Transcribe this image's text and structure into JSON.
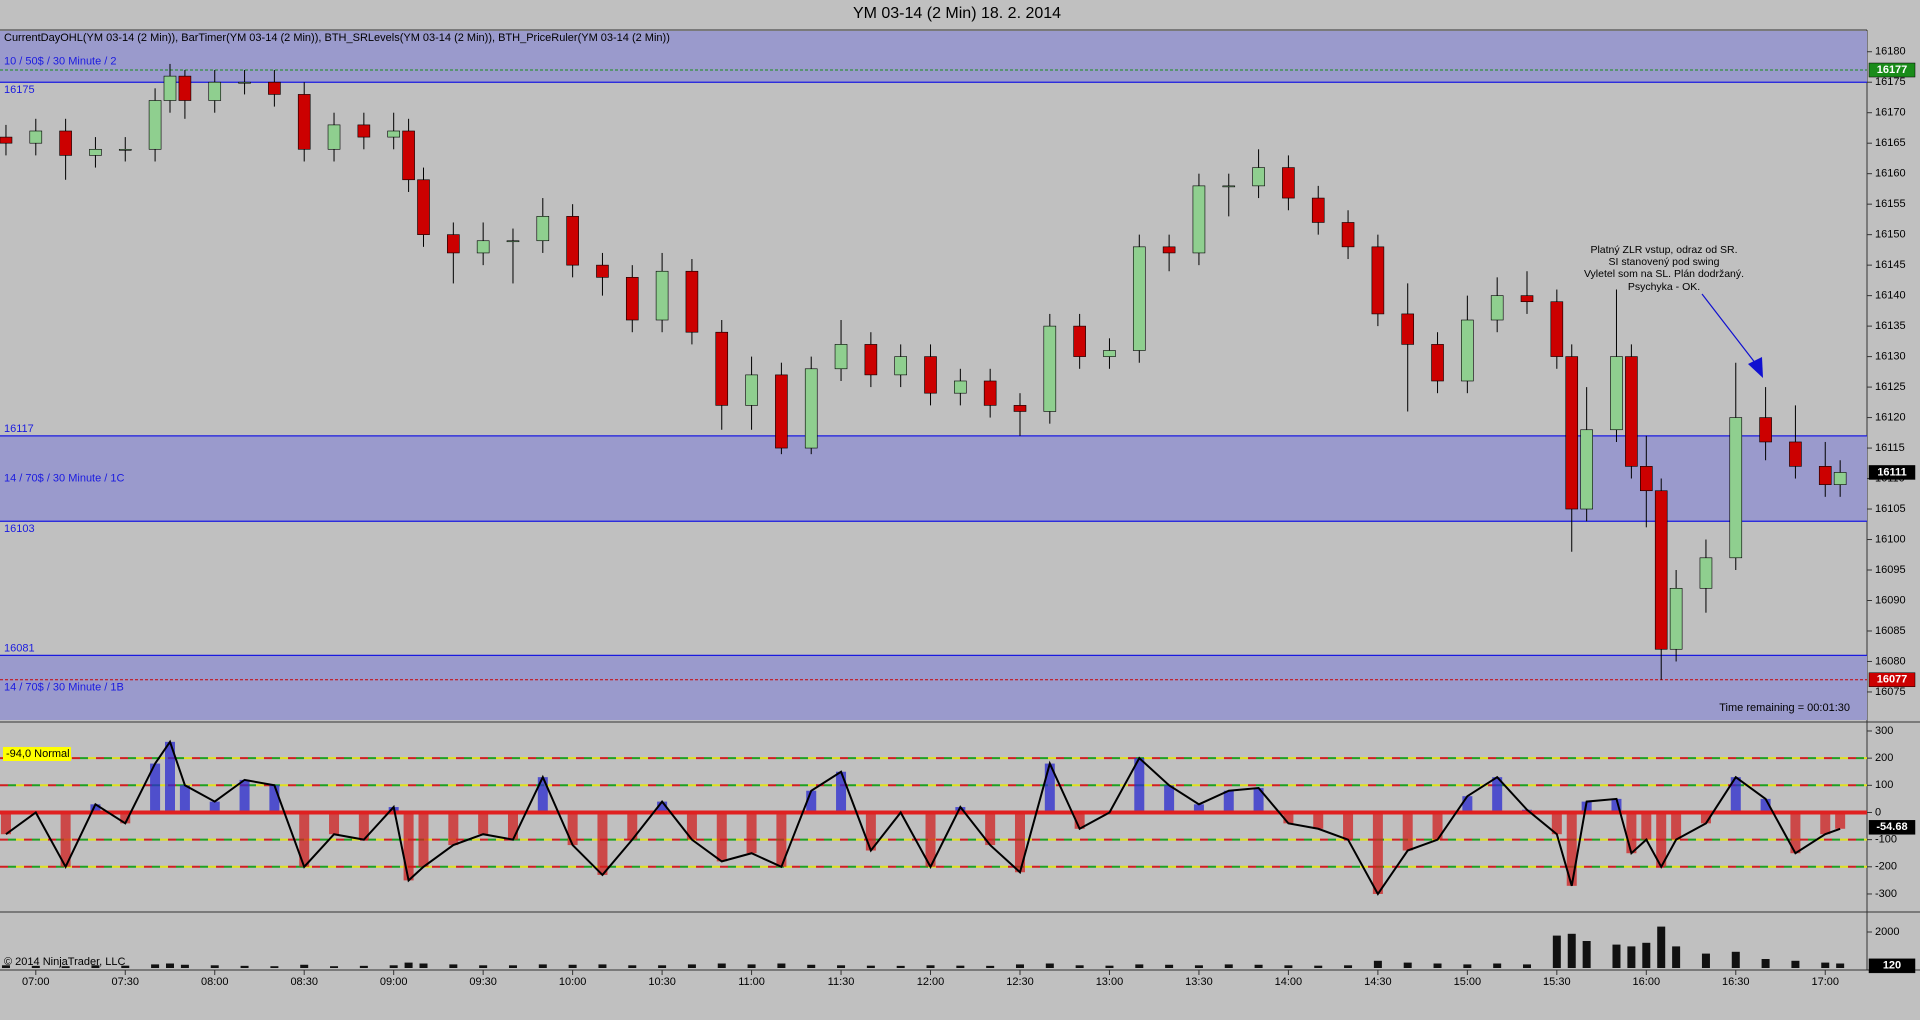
{
  "header": {
    "title": "YM 03-14 (2 Min)  18. 2. 2014",
    "indicators": "CurrentDayOHL(YM 03-14 (2 Min)), BarTimer(YM 03-14 (2 Min)), BTH_SRLevels(YM 03-14 (2 Min)), BTH_PriceRuler(YM 03-14 (2 Min))",
    "timer": "Time remaining = 00:01:30",
    "copyright": "© 2014 NinjaTrader, LLC",
    "annotation": [
      "Platný ZLR vstup, odraz od SR.",
      "SI stanovený pod swing",
      "Vyletel som na SL. Plán dodržaný.",
      "Psychyka - OK."
    ]
  },
  "chart_data": [
    {
      "type": "candlestick",
      "x": [
        "06:50",
        "07:00",
        "07:10",
        "07:20",
        "07:30",
        "07:40",
        "07:45",
        "07:50",
        "08:00",
        "08:10",
        "08:20",
        "08:30",
        "08:40",
        "08:50",
        "09:00",
        "09:05",
        "09:10",
        "09:20",
        "09:30",
        "09:40",
        "09:50",
        "10:00",
        "10:10",
        "10:20",
        "10:30",
        "10:40",
        "10:50",
        "11:00",
        "11:10",
        "11:20",
        "11:30",
        "11:40",
        "11:50",
        "12:00",
        "12:10",
        "12:20",
        "12:30",
        "12:40",
        "12:50",
        "13:00",
        "13:10",
        "13:20",
        "13:30",
        "13:40",
        "13:50",
        "14:00",
        "14:10",
        "14:20",
        "14:30",
        "14:40",
        "14:50",
        "15:00",
        "15:10",
        "15:20",
        "15:30",
        "15:35",
        "15:40",
        "15:50",
        "15:55",
        "16:00",
        "16:05",
        "16:10",
        "16:20",
        "16:30",
        "16:40",
        "16:50",
        "17:00",
        "17:05"
      ],
      "open": [
        16166,
        16165,
        16167,
        16163,
        16164,
        16164,
        16172,
        16176,
        16172,
        16175,
        16175,
        16173,
        16164,
        16168,
        16166,
        16167,
        16159,
        16150,
        16147,
        16149,
        16149,
        16153,
        16145,
        16143,
        16136,
        16144,
        16134,
        16122,
        16127,
        16115,
        16128,
        16132,
        16127,
        16130,
        16124,
        16126,
        16122,
        16121,
        16135,
        16130,
        16131,
        16148,
        16147,
        16158,
        16158,
        16161,
        16156,
        16152,
        16148,
        16137,
        16132,
        16126,
        16136,
        16140,
        16139,
        16130,
        16105,
        16118,
        16130,
        16112,
        16108,
        16082,
        16092,
        16097,
        16120,
        16116,
        16112,
        16109
      ],
      "high": [
        16168,
        16169,
        16169,
        16166,
        16166,
        16174,
        16178,
        16177,
        16177,
        16177,
        16177,
        16175,
        16170,
        16170,
        16170,
        16169,
        16161,
        16152,
        16152,
        16151,
        16156,
        16155,
        16147,
        16145,
        16147,
        16146,
        16136,
        16130,
        16129,
        16130,
        16136,
        16134,
        16132,
        16132,
        16128,
        16128,
        16124,
        16137,
        16137,
        16133,
        16150,
        16150,
        16160,
        16160,
        16164,
        16163,
        16158,
        16154,
        16150,
        16142,
        16134,
        16140,
        16143,
        16144,
        16141,
        16132,
        16125,
        16141,
        16132,
        16117,
        16110,
        16095,
        16100,
        16129,
        16125,
        16122,
        16116,
        16113
      ],
      "low": [
        16163,
        16163,
        16159,
        16161,
        16162,
        16162,
        16170,
        16169,
        16170,
        16173,
        16171,
        16162,
        16162,
        16164,
        16164,
        16157,
        16148,
        16142,
        16145,
        16142,
        16147,
        16143,
        16140,
        16134,
        16134,
        16132,
        16118,
        16118,
        16114,
        16114,
        16126,
        16125,
        16125,
        16122,
        16122,
        16120,
        16117,
        16119,
        16128,
        16128,
        16129,
        16144,
        16145,
        16153,
        16156,
        16154,
        16150,
        16146,
        16135,
        16121,
        16124,
        16124,
        16134,
        16137,
        16128,
        16098,
        16103,
        16116,
        16110,
        16102,
        16077,
        16080,
        16088,
        16095,
        16113,
        16110,
        16107,
        16107
      ],
      "close": [
        16165,
        16167,
        16163,
        16164,
        16164,
        16172,
        16176,
        16172,
        16175,
        16175,
        16173,
        16164,
        16168,
        16166,
        16167,
        16159,
        16150,
        16147,
        16149,
        16149,
        16153,
        16145,
        16143,
        16136,
        16144,
        16134,
        16122,
        16127,
        16115,
        16128,
        16132,
        16127,
        16130,
        16124,
        16126,
        16122,
        16121,
        16135,
        16130,
        16131,
        16148,
        16147,
        16158,
        16158,
        16161,
        16156,
        16152,
        16148,
        16137,
        16132,
        16126,
        16136,
        16140,
        16139,
        16130,
        16105,
        16118,
        16130,
        16112,
        16108,
        16082,
        16092,
        16097,
        16120,
        16116,
        16112,
        16109,
        16111
      ],
      "up_color": "#8fcf8f",
      "down_color": "#cc0000",
      "xlim": [
        "06:48",
        "17:14"
      ],
      "xticks": [
        "07:00",
        "07:30",
        "08:00",
        "08:30",
        "09:00",
        "09:30",
        "10:00",
        "10:30",
        "11:00",
        "11:30",
        "12:00",
        "12:30",
        "13:00",
        "13:30",
        "14:00",
        "14:30",
        "15:00",
        "15:30",
        "16:00",
        "16:30",
        "17:00"
      ],
      "ylim": [
        16070.4,
        16183.4
      ],
      "yticks": [
        16075,
        16080,
        16085,
        16090,
        16095,
        16100,
        16105,
        16110,
        16115,
        16120,
        16125,
        16130,
        16135,
        16140,
        16145,
        16150,
        16155,
        16160,
        16165,
        16170,
        16175,
        16180
      ],
      "zones": [
        {
          "high": 16183.4,
          "low": 16175,
          "label": "10 / 50$ / 30 Minute / 2"
        },
        {
          "high": 16117,
          "low": 16103,
          "label": "14 / 70$ / 30 Minute / 1C"
        },
        {
          "high": 16081,
          "low": 16070.4,
          "label": "14 / 70$ / 30 Minute / 1B"
        }
      ],
      "zone_color": "#9a9acc",
      "markers": [
        {
          "value": 16177,
          "color": "#1a8c1a"
        },
        {
          "value": 16111,
          "color": "#000000"
        },
        {
          "value": 16077,
          "color": "#cc0000"
        }
      ]
    },
    {
      "type": "oscillator",
      "status": "-94,0 Normal",
      "values": [
        -80,
        0,
        -200,
        30,
        -40,
        180,
        260,
        100,
        40,
        120,
        100,
        -200,
        -80,
        -100,
        20,
        -250,
        -200,
        -120,
        -80,
        -100,
        130,
        -120,
        -230,
        -100,
        40,
        -100,
        -180,
        -150,
        -200,
        80,
        150,
        -140,
        0,
        -200,
        20,
        -120,
        -220,
        180,
        -60,
        0,
        200,
        100,
        30,
        80,
        90,
        -40,
        -60,
        -100,
        -300,
        -140,
        -100,
        60,
        130,
        10,
        -80,
        -270,
        40,
        50,
        -150,
        -100,
        -200,
        -100,
        -40,
        130,
        50,
        -150,
        -80,
        -60
      ],
      "pos_color": "#2a2ad0",
      "neg_color": "#d02020",
      "ylim": [
        -359,
        322
      ],
      "yticks": [
        300,
        200,
        100,
        0,
        -100,
        -200,
        -300
      ],
      "levels": [
        200,
        100,
        -100,
        -200
      ],
      "last_value": -54.68
    },
    {
      "type": "bar",
      "values": [
        150,
        120,
        100,
        150,
        130,
        200,
        250,
        180,
        150,
        120,
        100,
        180,
        100,
        120,
        150,
        300,
        250,
        200,
        150,
        150,
        200,
        180,
        200,
        150,
        150,
        200,
        250,
        200,
        250,
        180,
        150,
        130,
        120,
        150,
        130,
        120,
        200,
        250,
        150,
        130,
        200,
        180,
        150,
        200,
        180,
        150,
        130,
        150,
        400,
        300,
        250,
        200,
        250,
        200,
        1800,
        1900,
        1500,
        1300,
        1200,
        1400,
        2300,
        1200,
        800,
        900,
        500,
        400,
        300,
        250
      ],
      "color": "#111111",
      "ylim": [
        0,
        3000
      ],
      "yticks": [
        2000
      ],
      "last_value": 120
    }
  ]
}
